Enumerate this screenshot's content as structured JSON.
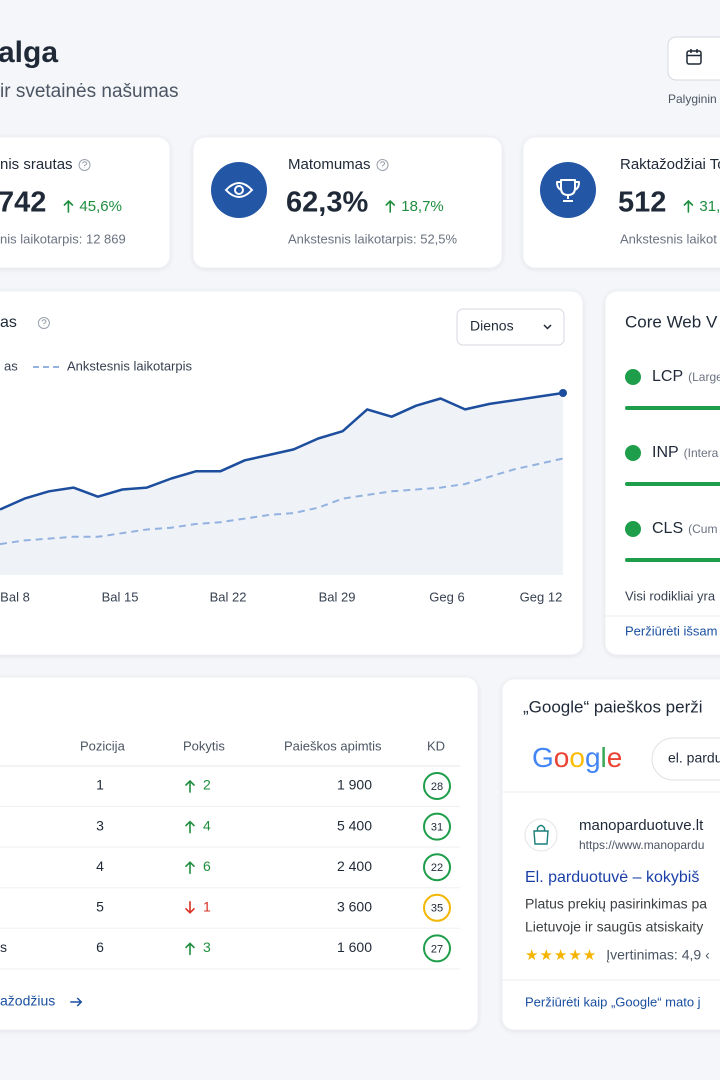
{
  "header": {
    "title": "alga",
    "subtitle": "ir svetainės našumas",
    "compare_caption": "Palyginin"
  },
  "kpis": [
    {
      "title": "nis srautas",
      "value": "742",
      "change": "45,6%",
      "previous": "nis laikotarpis: 12 869"
    },
    {
      "title": "Matomumas",
      "value": "62,3%",
      "change": "18,7%",
      "previous": "Ankstesnis laikotarpis: 52,5%"
    },
    {
      "title": "Raktažodžiai To",
      "value": "512",
      "change": "31,",
      "previous": "Ankstesnis laikot"
    }
  ],
  "chart": {
    "type": "line",
    "title": "as",
    "dropdown": "Dienos",
    "x_labels": [
      "Bal 8",
      "Bal 15",
      "Bal 22",
      "Bal 29",
      "Geg 6",
      "Geg 12"
    ],
    "ylim": [
      0,
      100
    ],
    "series": [
      {
        "name": "as",
        "color": "#1d4e9e",
        "values": [
          36,
          42,
          46,
          48,
          43,
          47,
          48,
          53,
          57,
          57,
          63,
          66,
          69,
          75,
          79,
          91,
          87,
          93,
          97,
          91,
          94,
          96,
          98,
          100
        ]
      },
      {
        "name": "Ankstesnis laikotarpis",
        "color": "#93b2e0",
        "dashed": true,
        "values": [
          17,
          19,
          20,
          21,
          21,
          23,
          25,
          26,
          28,
          29,
          31,
          33,
          34,
          37,
          42,
          44,
          46,
          47,
          48,
          50,
          54,
          58,
          61,
          64
        ]
      }
    ]
  },
  "vitals": {
    "title": "Core Web V",
    "items": [
      {
        "name": "LCP",
        "desc": "(Large",
        "color": "#1e9e4a"
      },
      {
        "name": "INP",
        "desc": "(Intera",
        "color": "#1e9e4a"
      },
      {
        "name": "CLS",
        "desc": "(Cum",
        "color": "#1e9e4a"
      }
    ],
    "summary": "Visi rodikliai yra",
    "link": "Peržiūrėti išsam"
  },
  "keywords": {
    "headers": [
      "Pozicija",
      "Pokytis",
      "Paieškos apimtis",
      "KD"
    ],
    "rows": [
      {
        "keyword": null,
        "position": "1",
        "change": "2",
        "direction": "up",
        "volume": "1 900",
        "kd": "28",
        "kd_color": "#1e9e4a"
      },
      {
        "keyword": null,
        "position": "3",
        "change": "4",
        "direction": "up",
        "volume": "5 400",
        "kd": "31",
        "kd_color": "#1e9e4a"
      },
      {
        "keyword": null,
        "position": "4",
        "change": "6",
        "direction": "up",
        "volume": "2 400",
        "kd": "22",
        "kd_color": "#1e9e4a"
      },
      {
        "keyword": null,
        "position": "5",
        "change": "1",
        "direction": "down",
        "volume": "3 600",
        "kd": "35",
        "kd_color": "#f2b705"
      },
      {
        "keyword": "s",
        "position": "6",
        "change": "3",
        "direction": "up",
        "volume": "1 600",
        "kd": "27",
        "kd_color": "#1e9e4a"
      }
    ],
    "link": "ažodžius"
  },
  "serp": {
    "title": "„Google“ paieškos perži",
    "logo": "Google",
    "query": "el. parduo",
    "site": "manoparduotuve.lt",
    "url": "https://www.manopardu",
    "headline": "El. parduotuvė – kokybiš",
    "description": [
      "Platus prekių pasirinkimas pa",
      "Lietuvoje ir saugūs atsiskaity"
    ],
    "stars": "★★★★★",
    "rating": "Įvertinimas: 4,9 ‹",
    "link": "Peržiūrėti kaip „Google“ mato j"
  }
}
